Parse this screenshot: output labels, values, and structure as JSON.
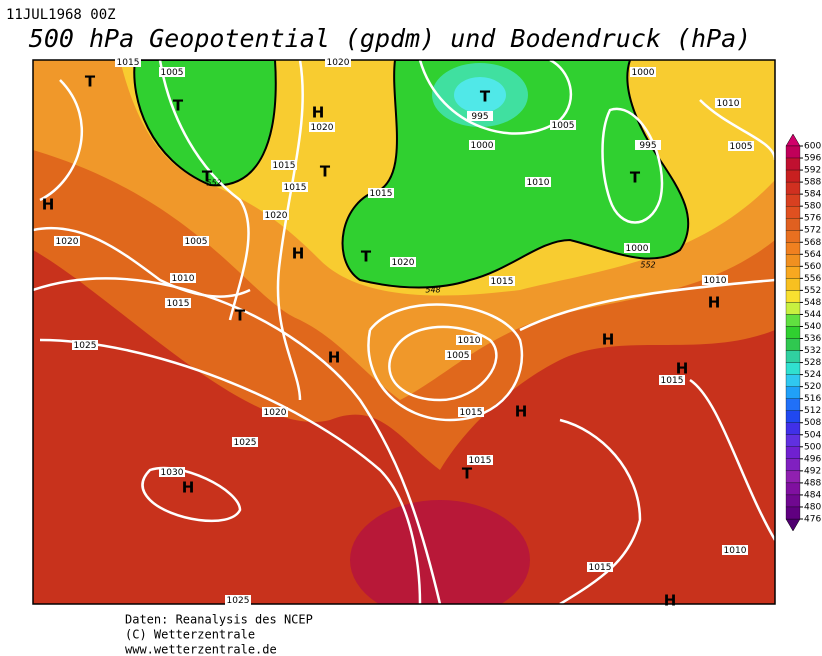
{
  "header": {
    "date": "11JUL1968 00Z",
    "title": "500 hPa Geopotential (gpdm) und Bodendruck (hPa)"
  },
  "colorbar": {
    "levels": [
      600,
      596,
      592,
      588,
      584,
      580,
      576,
      572,
      568,
      564,
      560,
      556,
      552,
      548,
      544,
      540,
      536,
      532,
      528,
      524,
      520,
      516,
      512,
      508,
      504,
      500,
      496,
      492,
      488,
      484,
      480,
      476
    ]
  },
  "isobar_labels": [
    1015,
    1005,
    1020,
    1000,
    1010,
    1020,
    995,
    1005,
    995,
    1005,
    1000,
    1015,
    1015,
    1015,
    1010,
    1020,
    1020,
    1005,
    1000,
    1020,
    1010,
    1015,
    1015,
    1010,
    1025,
    1010,
    1005,
    1015,
    1015,
    1020,
    1025,
    1015,
    1030,
    1010,
    1015,
    1025
  ],
  "contour_labels": [
    552,
    548,
    552
  ],
  "pressure_centers": [
    "T",
    "T",
    "H",
    "T",
    "T",
    "T",
    "T",
    "H",
    "H",
    "T",
    "T",
    "H",
    "H",
    "H",
    "H",
    "H",
    "T",
    "H",
    "H"
  ],
  "footer": {
    "source": "Daten: Reanalysis des NCEP",
    "copyright": "(C) Wetterzentrale",
    "url": "www.wetterzentrale.de"
  }
}
